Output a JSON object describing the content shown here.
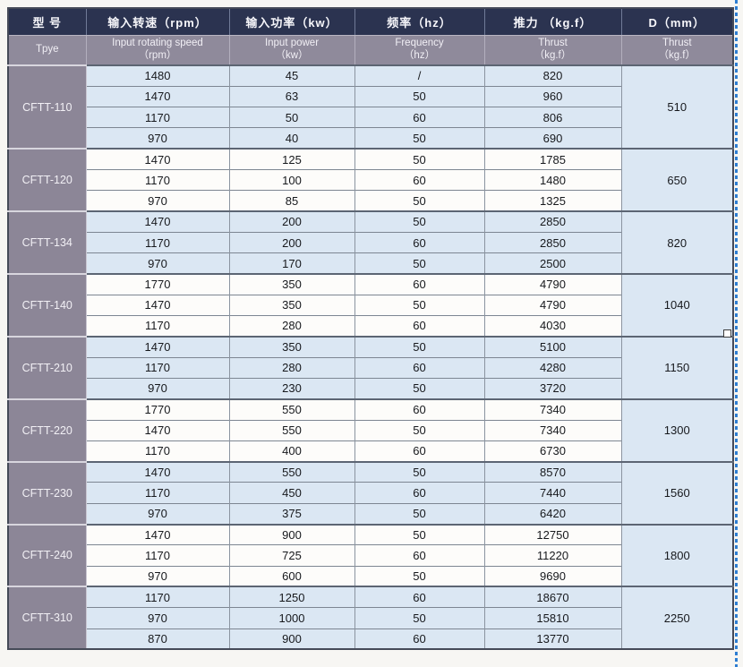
{
  "colors": {
    "header_bg": "#2b3350",
    "subheader_bg": "#8f8a9b",
    "type_column_bg": "#8c8697",
    "row_blue": "#dbe7f3",
    "row_white": "#fdfcfa",
    "d_column_bg": "#dbe7f3",
    "selection_dash": "#2e7ed2"
  },
  "table": {
    "columns": [
      {
        "zh": "型 号",
        "en": "Tpye",
        "en_sub": ""
      },
      {
        "zh": "输入转速（rpm）",
        "en": "Input rotating speed",
        "en_sub": "（rpm）"
      },
      {
        "zh": "输入功率（kw）",
        "en": "Input power",
        "en_sub": "（kw）"
      },
      {
        "zh": "频率（hz）",
        "en": "Frequency",
        "en_sub": "（hz）"
      },
      {
        "zh": "推力 （kg.f）",
        "en": "Thrust",
        "en_sub": "（kg.f）"
      },
      {
        "zh": "D（mm）",
        "en": "Thrust",
        "en_sub": "（kg.f）"
      }
    ],
    "groups": [
      {
        "type": "CFTT-110",
        "d": "510",
        "rows": [
          [
            "1480",
            "45",
            "/",
            "820"
          ],
          [
            "1470",
            "63",
            "50",
            "960"
          ],
          [
            "1170",
            "50",
            "60",
            "806"
          ],
          [
            "970",
            "40",
            "50",
            "690"
          ]
        ]
      },
      {
        "type": "CFTT-120",
        "d": "650",
        "rows": [
          [
            "1470",
            "125",
            "50",
            "1785"
          ],
          [
            "1170",
            "100",
            "60",
            "1480"
          ],
          [
            "970",
            "85",
            "50",
            "1325"
          ]
        ]
      },
      {
        "type": "CFTT-134",
        "d": "820",
        "rows": [
          [
            "1470",
            "200",
            "50",
            "2850"
          ],
          [
            "1170",
            "200",
            "60",
            "2850"
          ],
          [
            "970",
            "170",
            "50",
            "2500"
          ]
        ]
      },
      {
        "type": "CFTT-140",
        "d": "1040",
        "rows": [
          [
            "1770",
            "350",
            "60",
            "4790"
          ],
          [
            "1470",
            "350",
            "50",
            "4790"
          ],
          [
            "1170",
            "280",
            "60",
            "4030"
          ]
        ]
      },
      {
        "type": "CFTT-210",
        "d": "1150",
        "rows": [
          [
            "1470",
            "350",
            "50",
            "5100"
          ],
          [
            "1170",
            "280",
            "60",
            "4280"
          ],
          [
            "970",
            "230",
            "50",
            "3720"
          ]
        ]
      },
      {
        "type": "CFTT-220",
        "d": "1300",
        "rows": [
          [
            "1770",
            "550",
            "60",
            "7340"
          ],
          [
            "1470",
            "550",
            "50",
            "7340"
          ],
          [
            "1170",
            "400",
            "60",
            "6730"
          ]
        ]
      },
      {
        "type": "CFTT-230",
        "d": "1560",
        "rows": [
          [
            "1470",
            "550",
            "50",
            "8570"
          ],
          [
            "1170",
            "450",
            "60",
            "7440"
          ],
          [
            "970",
            "375",
            "50",
            "6420"
          ]
        ]
      },
      {
        "type": "CFTT-240",
        "d": "1800",
        "rows": [
          [
            "1470",
            "900",
            "50",
            "12750"
          ],
          [
            "1170",
            "725",
            "60",
            "11220"
          ],
          [
            "970",
            "600",
            "50",
            "9690"
          ]
        ]
      },
      {
        "type": "CFTT-310",
        "d": "2250",
        "rows": [
          [
            "1170",
            "1250",
            "60",
            "18670"
          ],
          [
            "970",
            "1000",
            "50",
            "15810"
          ],
          [
            "870",
            "900",
            "60",
            "13770"
          ]
        ]
      }
    ]
  }
}
